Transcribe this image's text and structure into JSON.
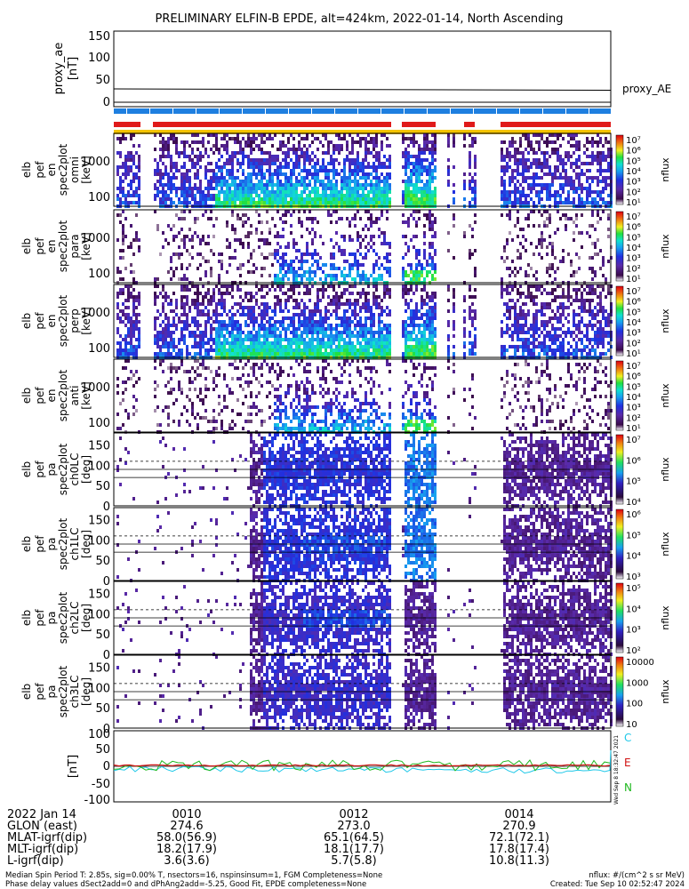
{
  "title": "PRELIMINARY ELFIN-B EPDE, alt=424km, 2022-01-14, North Ascending",
  "colors": {
    "bar_blue": "#1e7fe0",
    "bar_red": "#e01a1a",
    "bar_yellow": "#f4c400",
    "bg_white": "#ffffff"
  },
  "proxy_ae": {
    "ylabel": "proxy_ae\n[nT]",
    "ylabel_parts": [
      "proxy_ae",
      "[nT]"
    ],
    "legend": "proxy_AE",
    "yticks": [
      "150",
      "100",
      "50",
      "0"
    ]
  },
  "panels": [
    {
      "ylabel": [
        "elb",
        "pef",
        "en",
        "spec2plot",
        "omni",
        "[keV]"
      ],
      "yticks": [
        "1000",
        "100"
      ],
      "cbar_ticks": [
        "10⁷",
        "10⁶",
        "10⁵",
        "10⁴",
        "10³",
        "10²",
        "10¹"
      ],
      "cbar_label": "nflux"
    },
    {
      "ylabel": [
        "elb",
        "pef",
        "en",
        "spec2plot",
        "para",
        "[keV]"
      ],
      "yticks": [
        "1000",
        "100"
      ],
      "cbar_ticks": [
        "10⁷",
        "10⁶",
        "10⁵",
        "10⁴",
        "10³",
        "10²",
        "10¹"
      ],
      "cbar_label": "nflux"
    },
    {
      "ylabel": [
        "elb",
        "pef",
        "en",
        "spec2plot",
        "perp",
        "[keV]"
      ],
      "yticks": [
        "1000",
        "100"
      ],
      "cbar_ticks": [
        "10⁷",
        "10⁶",
        "10⁵",
        "10⁴",
        "10³",
        "10²",
        "10¹"
      ],
      "cbar_label": "nflux"
    },
    {
      "ylabel": [
        "elb",
        "pef",
        "en",
        "spec2plot",
        "anti",
        "[keV]"
      ],
      "yticks": [
        "1000",
        "100"
      ],
      "cbar_ticks": [
        "10⁷",
        "10⁶",
        "10⁵",
        "10⁴",
        "10³",
        "10²",
        "10¹"
      ],
      "cbar_label": "nflux"
    },
    {
      "ylabel": [
        "elb",
        "pef",
        "pa",
        "spec2plot",
        "ch0LC",
        "[deg]"
      ],
      "yticks": [
        "150",
        "100",
        "50",
        "0"
      ],
      "cbar_ticks": [
        "10⁷",
        "10⁶",
        "10⁵",
        "10⁴"
      ],
      "cbar_label": "nflux"
    },
    {
      "ylabel": [
        "elb",
        "pef",
        "pa",
        "spec2plot",
        "ch1LC",
        "[deg]"
      ],
      "yticks": [
        "150",
        "100",
        "50",
        "0"
      ],
      "cbar_ticks": [
        "10⁶",
        "10⁵",
        "10⁴",
        "10³"
      ],
      "cbar_label": "nflux"
    },
    {
      "ylabel": [
        "elb",
        "pef",
        "pa",
        "spec2plot",
        "ch2LC",
        "[deg]"
      ],
      "yticks": [
        "150",
        "100",
        "50",
        "0"
      ],
      "cbar_ticks": [
        "10⁵",
        "10⁴",
        "10³",
        "10²"
      ],
      "cbar_label": "nflux"
    },
    {
      "ylabel": [
        "elb",
        "pef",
        "pa",
        "spec2plot",
        "ch3LC",
        "[deg]"
      ],
      "yticks": [
        "150",
        "100",
        "50",
        "0"
      ],
      "cbar_ticks": [
        "10000",
        "1000",
        "100",
        "10"
      ],
      "cbar_label": "nflux"
    }
  ],
  "mag_panel": {
    "ylabel": "[nT]",
    "yticks": [
      "100",
      "50",
      "0",
      "-50",
      "-100"
    ],
    "legend": [
      {
        "label": "C",
        "color": "#1fc8e8"
      },
      {
        "label": "E",
        "color": "#d01010"
      },
      {
        "label": "N",
        "color": "#1fb81f"
      }
    ],
    "side_stamp": "Wed Sep 8 18:32:47 2021"
  },
  "xaxis": {
    "date_label": "2022 Jan 14",
    "ticks": [
      "0010",
      "0012",
      "0014"
    ],
    "rows": [
      {
        "label": "GLON (east)",
        "values": [
          "274.6",
          "273.0",
          "270.9"
        ]
      },
      {
        "label": "MLAT-igrf(dip)",
        "values": [
          "58.0(56.9)",
          "65.1(64.5)",
          "72.1(72.1)"
        ]
      },
      {
        "label": "MLT-igrf(dip)",
        "values": [
          "18.2(17.9)",
          "18.1(17.7)",
          "17.8(17.4)"
        ]
      },
      {
        "label": "L-igrf(dip)",
        "values": [
          "3.6(3.6)",
          "5.7(5.8)",
          "10.8(11.3)"
        ]
      }
    ]
  },
  "footer": {
    "line1": "Median Spin Period T: 2.85s, sig=0.00% T, nsectors=16, nspinsinsum=1, FGM Completeness=None",
    "line2": "Phase delay values dSect2add=0 and dPhAng2add=-5.25, Good Fit, EPDE completeness=None",
    "right1": "nflux: #/(cm^2 s sr MeV)",
    "right2": "Created: Tue Sep 10 02:52:47 2024"
  },
  "chart_data": {
    "type": "heatmap",
    "title": "PRELIMINARY ELFIN-B EPDE, alt=424km, 2022-01-14, North Ascending",
    "x_range": [
      "00:09:15",
      "00:15:10"
    ],
    "proxy_ae_series": {
      "name": "proxy_AE",
      "x": [
        "00:09:15",
        "00:15:10"
      ],
      "values": [
        30,
        27
      ]
    },
    "proxy_ae_ylim": [
      0,
      150
    ],
    "energy_ylim_keV": [
      50,
      5000
    ],
    "pitch_ylim_deg": [
      0,
      180
    ],
    "mag_ylim_nT": [
      -100,
      100
    ]
  }
}
